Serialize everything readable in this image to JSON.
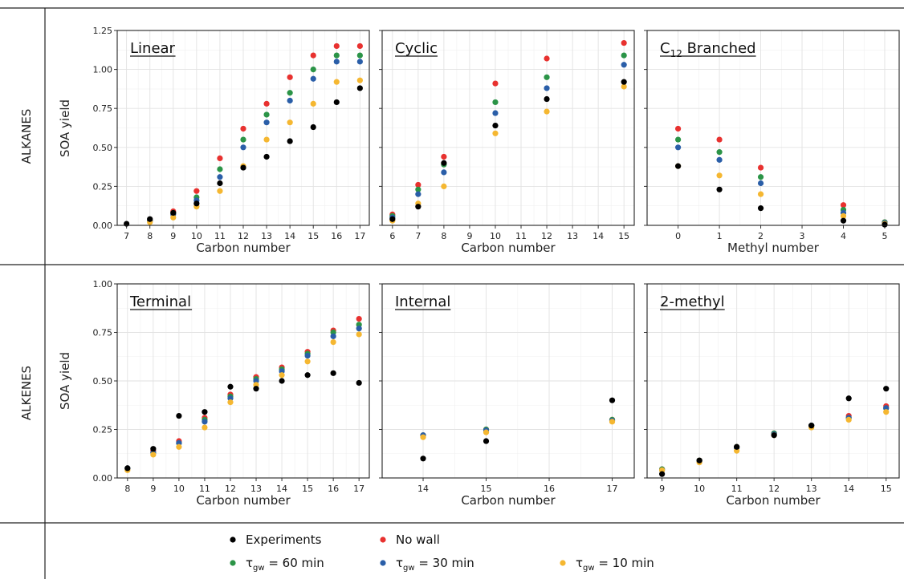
{
  "row_labels": [
    "ALKANES",
    "ALKENES"
  ],
  "ylabel": "SOA yield",
  "legend": [
    {
      "key": "experiments",
      "label": "Experiments",
      "color": "#000000"
    },
    {
      "key": "no_wall",
      "label": "No wall",
      "color": "#e8312f"
    },
    {
      "key": "tau60",
      "label": "τ_gw = 60 min",
      "symbol": "τ",
      "sub": "gw",
      "rest": " = 60 min",
      "color": "#2b9447"
    },
    {
      "key": "tau30",
      "label": "τ_gw = 30 min",
      "symbol": "τ",
      "sub": "gw",
      "rest": " = 30 min",
      "color": "#2a5ea8"
    },
    {
      "key": "tau10",
      "label": "τ_gw = 10 min",
      "symbol": "τ",
      "sub": "gw",
      "rest": " = 10 min",
      "color": "#f5b731"
    }
  ],
  "chart_data": [
    {
      "type": "scatter",
      "title": "Linear",
      "xlabel": "Carbon number",
      "ylabel": "SOA yield",
      "ylim": [
        0,
        1.25
      ],
      "yticks": [
        0,
        0.25,
        0.5,
        0.75,
        1.0,
        1.25
      ],
      "ytick_labels": [
        "0.00",
        "0.25",
        "0.50",
        "0.75",
        "1.00",
        "1.25"
      ],
      "xlim": [
        6.6,
        17.4
      ],
      "xticks": [
        7,
        8,
        9,
        10,
        11,
        12,
        13,
        14,
        15,
        16,
        17
      ],
      "series": [
        {
          "key": "no_wall",
          "x": [
            8,
            9,
            10,
            11,
            12,
            13,
            14,
            15,
            16,
            17
          ],
          "y": [
            0.03,
            0.09,
            0.22,
            0.43,
            0.62,
            0.78,
            0.95,
            1.09,
            1.15,
            1.15
          ]
        },
        {
          "key": "tau60",
          "x": [
            8,
            9,
            10,
            11,
            12,
            13,
            14,
            15,
            16,
            17
          ],
          "y": [
            0.03,
            0.08,
            0.18,
            0.36,
            0.55,
            0.71,
            0.85,
            1.0,
            1.09,
            1.09
          ]
        },
        {
          "key": "tau30",
          "x": [
            8,
            9,
            10,
            11,
            12,
            13,
            14,
            15,
            16,
            17
          ],
          "y": [
            0.03,
            0.07,
            0.16,
            0.31,
            0.5,
            0.66,
            0.8,
            0.94,
            1.05,
            1.05
          ]
        },
        {
          "key": "tau10",
          "x": [
            8,
            9,
            10,
            11,
            12,
            13,
            14,
            15,
            16,
            17
          ],
          "y": [
            0.02,
            0.05,
            0.12,
            0.22,
            0.38,
            0.55,
            0.66,
            0.78,
            0.92,
            0.93
          ]
        },
        {
          "key": "experiments",
          "x": [
            7,
            8,
            9,
            10,
            11,
            12,
            13,
            14,
            15,
            16,
            17
          ],
          "y": [
            0.01,
            0.04,
            0.08,
            0.14,
            0.27,
            0.37,
            0.44,
            0.54,
            0.63,
            0.79,
            0.88
          ]
        }
      ]
    },
    {
      "type": "scatter",
      "title": "Cyclic",
      "xlabel": "Carbon number",
      "ylabel": "",
      "ylim": [
        0,
        1.25
      ],
      "yticks": [
        0,
        0.25,
        0.5,
        0.75,
        1.0,
        1.25
      ],
      "xlim": [
        5.6,
        15.4
      ],
      "xticks": [
        6,
        7,
        8,
        9,
        10,
        11,
        12,
        13,
        14,
        15
      ],
      "series": [
        {
          "key": "no_wall",
          "x": [
            6,
            7,
            8,
            10,
            12,
            15
          ],
          "y": [
            0.07,
            0.26,
            0.44,
            0.91,
            1.07,
            1.17
          ]
        },
        {
          "key": "tau60",
          "x": [
            6,
            7,
            8,
            10,
            12,
            15
          ],
          "y": [
            0.06,
            0.23,
            0.39,
            0.79,
            0.95,
            1.09
          ]
        },
        {
          "key": "tau30",
          "x": [
            6,
            7,
            8,
            10,
            12,
            15
          ],
          "y": [
            0.05,
            0.2,
            0.34,
            0.72,
            0.88,
            1.03
          ]
        },
        {
          "key": "tau10",
          "x": [
            6,
            7,
            8,
            10,
            12,
            15
          ],
          "y": [
            0.03,
            0.14,
            0.25,
            0.59,
            0.73,
            0.89
          ]
        },
        {
          "key": "experiments",
          "x": [
            6,
            7,
            8,
            10,
            12,
            15
          ],
          "y": [
            0.04,
            0.12,
            0.4,
            0.64,
            0.81,
            0.92
          ]
        }
      ]
    },
    {
      "type": "scatter",
      "title": "C",
      "title_sub": "12",
      "title_rest": " Branched",
      "xlabel": "Methyl number",
      "ylabel": "",
      "ylim": [
        0,
        1.25
      ],
      "yticks": [
        0,
        0.25,
        0.5,
        0.75,
        1.0,
        1.25
      ],
      "xlim": [
        -0.75,
        5.35
      ],
      "xticks": [
        0,
        1,
        2,
        3,
        4,
        5
      ],
      "series": [
        {
          "key": "no_wall",
          "x": [
            0,
            1,
            2,
            4,
            5
          ],
          "y": [
            0.62,
            0.55,
            0.37,
            0.13,
            0.02
          ]
        },
        {
          "key": "tau60",
          "x": [
            0,
            1,
            2,
            4,
            5
          ],
          "y": [
            0.55,
            0.47,
            0.31,
            0.1,
            0.02
          ]
        },
        {
          "key": "tau30",
          "x": [
            0,
            1,
            2,
            4,
            5
          ],
          "y": [
            0.5,
            0.42,
            0.27,
            0.08,
            0.015
          ]
        },
        {
          "key": "tau10",
          "x": [
            0,
            1,
            2,
            4,
            5
          ],
          "y": [
            0.38,
            0.32,
            0.2,
            0.06,
            0.01
          ]
        },
        {
          "key": "experiments",
          "x": [
            0,
            1,
            2,
            4,
            5
          ],
          "y": [
            0.38,
            0.23,
            0.11,
            0.03,
            0.005
          ]
        }
      ]
    },
    {
      "type": "scatter",
      "title": "Terminal",
      "xlabel": "Carbon number",
      "ylabel": "SOA yield",
      "ylim": [
        0,
        1.0
      ],
      "yticks": [
        0,
        0.25,
        0.5,
        0.75,
        1.0
      ],
      "ytick_labels": [
        "0.00",
        "0.25",
        "0.50",
        "0.75",
        "1.00"
      ],
      "xlim": [
        7.6,
        17.4
      ],
      "xticks": [
        8,
        9,
        10,
        11,
        12,
        13,
        14,
        15,
        16,
        17
      ],
      "series": [
        {
          "key": "no_wall",
          "x": [
            8,
            9,
            10,
            11,
            12,
            13,
            14,
            15,
            16,
            17
          ],
          "y": [
            0.05,
            0.14,
            0.19,
            0.31,
            0.43,
            0.52,
            0.57,
            0.65,
            0.76,
            0.82
          ]
        },
        {
          "key": "tau60",
          "x": [
            8,
            9,
            10,
            11,
            12,
            13,
            14,
            15,
            16,
            17
          ],
          "y": [
            0.05,
            0.13,
            0.18,
            0.3,
            0.42,
            0.51,
            0.56,
            0.64,
            0.75,
            0.79
          ]
        },
        {
          "key": "tau30",
          "x": [
            8,
            9,
            10,
            11,
            12,
            13,
            14,
            15,
            16,
            17
          ],
          "y": [
            0.05,
            0.13,
            0.18,
            0.29,
            0.41,
            0.5,
            0.55,
            0.63,
            0.73,
            0.77
          ]
        },
        {
          "key": "tau10",
          "x": [
            8,
            9,
            10,
            11,
            12,
            13,
            14,
            15,
            16,
            17
          ],
          "y": [
            0.04,
            0.12,
            0.16,
            0.26,
            0.39,
            0.48,
            0.53,
            0.6,
            0.7,
            0.74
          ]
        },
        {
          "key": "experiments",
          "x": [
            8,
            9,
            10,
            11,
            12,
            13,
            14,
            15,
            16,
            17
          ],
          "y": [
            0.05,
            0.15,
            0.32,
            0.34,
            0.47,
            0.46,
            0.5,
            0.53,
            0.54,
            0.49
          ]
        }
      ]
    },
    {
      "type": "scatter",
      "title": "Internal",
      "xlabel": "Carbon number",
      "ylabel": "",
      "ylim": [
        0,
        1.0
      ],
      "yticks": [
        0,
        0.25,
        0.5,
        0.75,
        1.0
      ],
      "xlim": [
        13.35,
        17.35
      ],
      "xticks": [
        14,
        15,
        16,
        17
      ],
      "series": [
        {
          "key": "no_wall",
          "x": [
            14,
            15,
            17
          ],
          "y": [
            0.22,
            0.25,
            0.3
          ]
        },
        {
          "key": "tau60",
          "x": [
            14,
            15,
            17
          ],
          "y": [
            0.22,
            0.25,
            0.3
          ]
        },
        {
          "key": "tau30",
          "x": [
            14,
            15,
            17
          ],
          "y": [
            0.22,
            0.245,
            0.295
          ]
        },
        {
          "key": "tau10",
          "x": [
            14,
            15,
            17
          ],
          "y": [
            0.21,
            0.235,
            0.29
          ]
        },
        {
          "key": "experiments",
          "x": [
            14,
            15,
            17
          ],
          "y": [
            0.1,
            0.19,
            0.4
          ]
        }
      ]
    },
    {
      "type": "scatter",
      "title": "2-methyl",
      "xlabel": "Carbon number",
      "ylabel": "",
      "ylim": [
        0,
        1.0
      ],
      "yticks": [
        0,
        0.25,
        0.5,
        0.75,
        1.0
      ],
      "xlim": [
        8.6,
        15.35
      ],
      "xticks": [
        9,
        10,
        11,
        12,
        13,
        14,
        15
      ],
      "series": [
        {
          "key": "no_wall",
          "x": [
            9,
            10,
            11,
            12,
            13,
            14,
            15
          ],
          "y": [
            0.045,
            0.09,
            0.16,
            0.23,
            0.27,
            0.32,
            0.37
          ]
        },
        {
          "key": "tau60",
          "x": [
            9,
            10,
            11,
            12,
            13,
            14,
            15
          ],
          "y": [
            0.045,
            0.09,
            0.16,
            0.23,
            0.27,
            0.31,
            0.36
          ]
        },
        {
          "key": "tau30",
          "x": [
            9,
            10,
            11,
            12,
            13,
            14,
            15
          ],
          "y": [
            0.04,
            0.085,
            0.155,
            0.225,
            0.27,
            0.31,
            0.36
          ]
        },
        {
          "key": "tau10",
          "x": [
            9,
            10,
            11,
            12,
            13,
            14,
            15
          ],
          "y": [
            0.04,
            0.08,
            0.14,
            0.22,
            0.26,
            0.3,
            0.34
          ]
        },
        {
          "key": "experiments",
          "x": [
            9,
            10,
            11,
            12,
            13,
            14,
            15
          ],
          "y": [
            0.02,
            0.09,
            0.16,
            0.22,
            0.27,
            0.41,
            0.46
          ]
        }
      ]
    }
  ]
}
